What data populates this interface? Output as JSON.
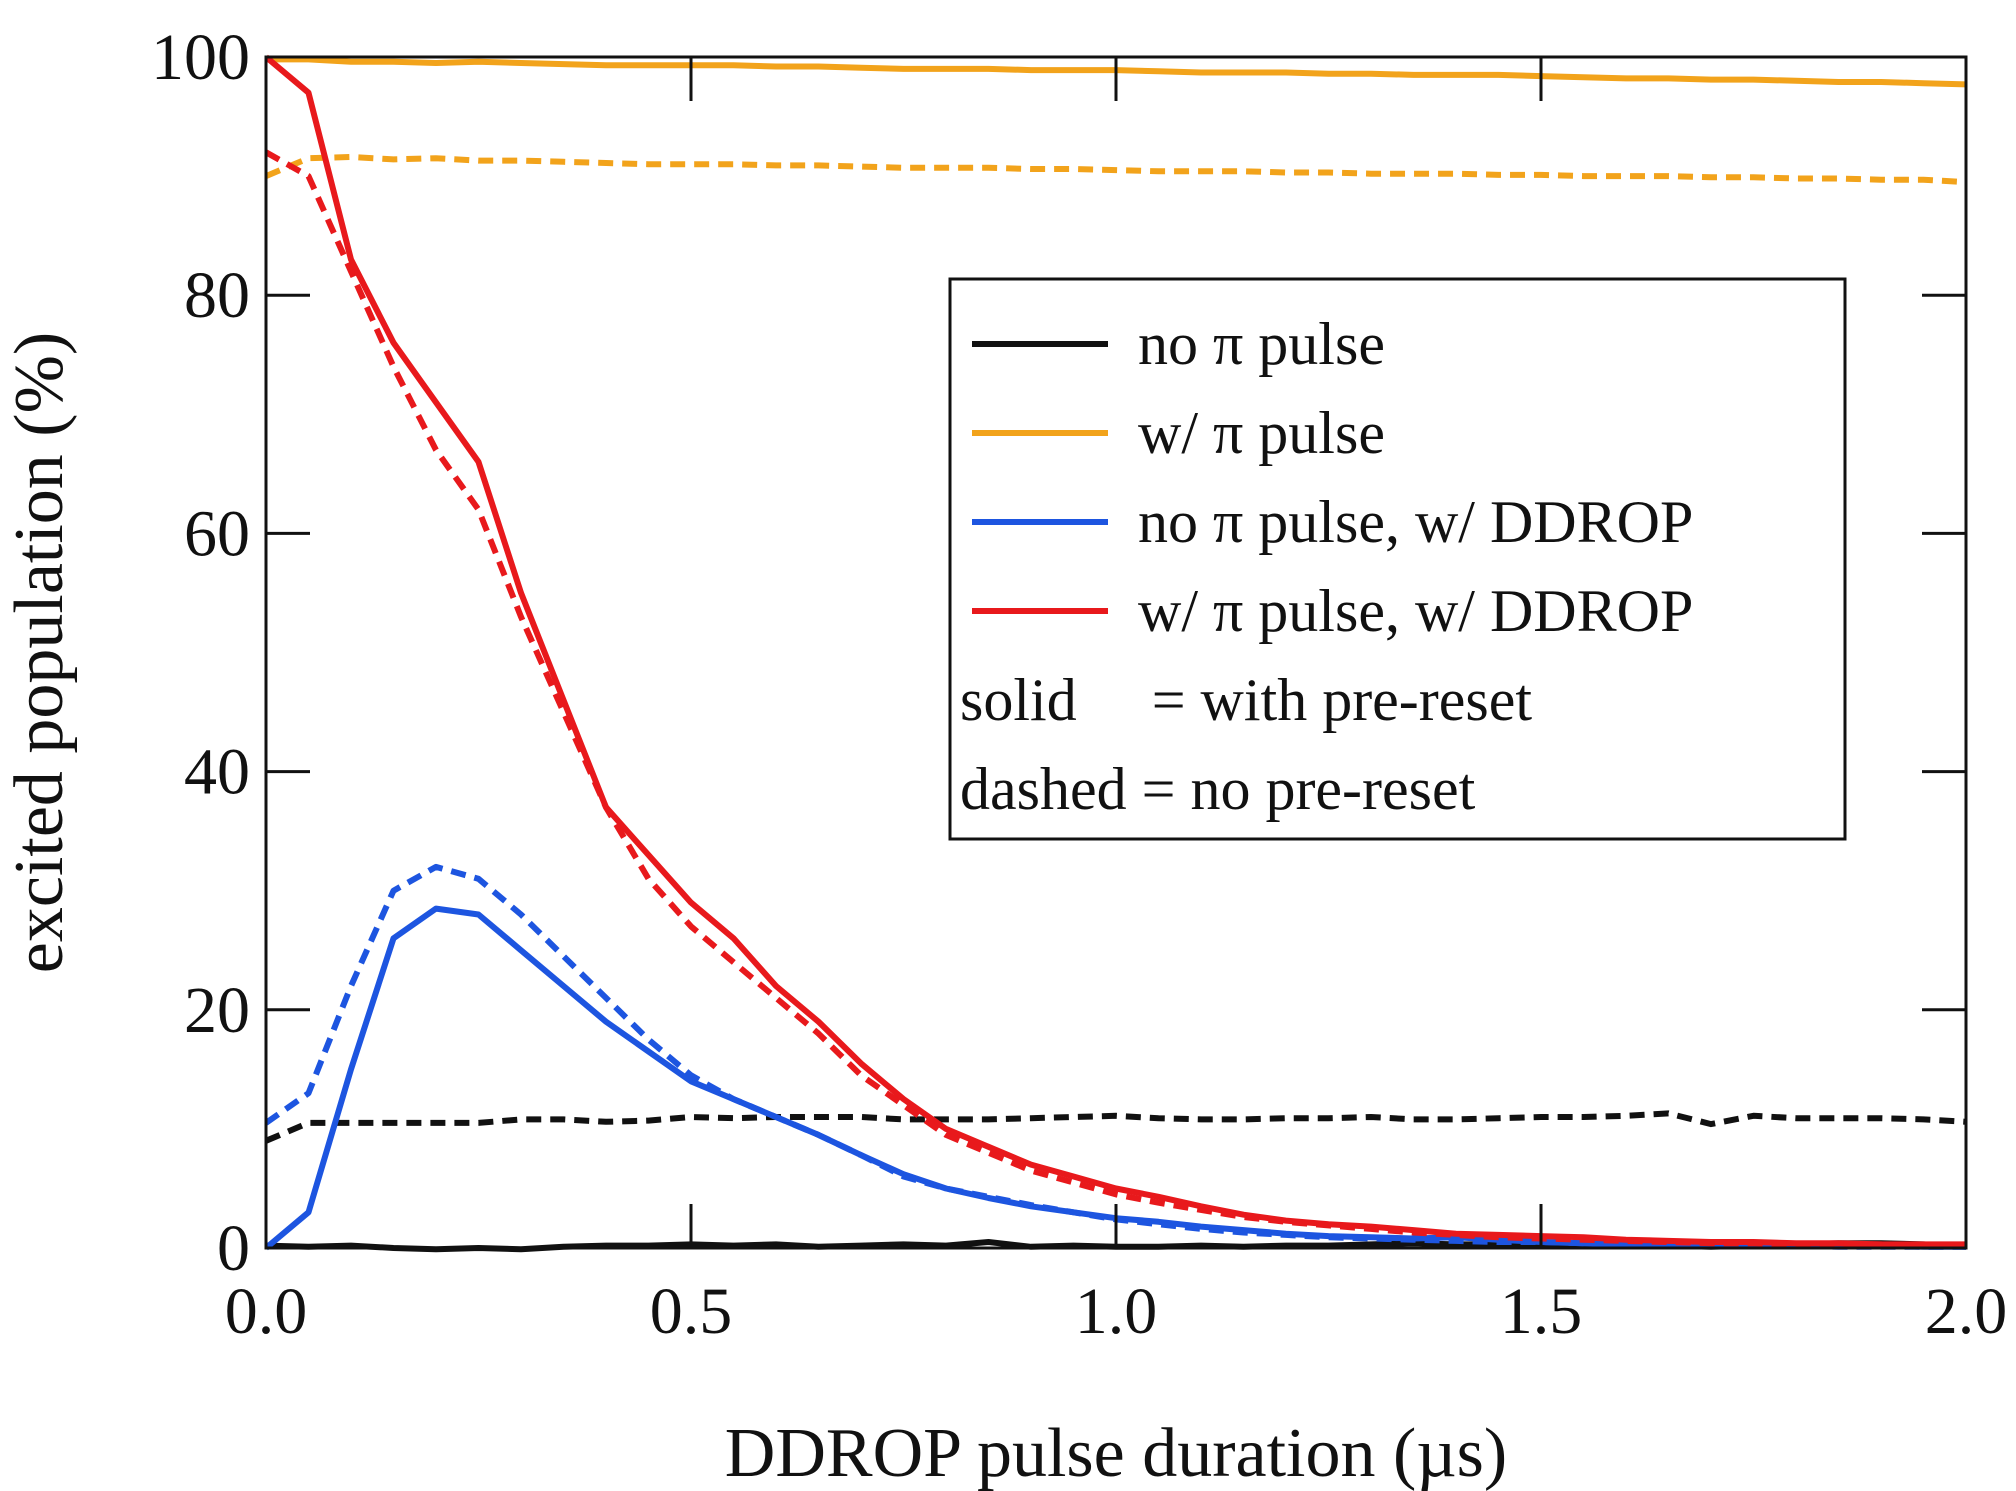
{
  "chart_data": {
    "type": "line",
    "title": "",
    "xlabel": "DDROP pulse duration (µs)",
    "ylabel": "excited population (%)",
    "xlim": [
      0,
      2.0
    ],
    "ylim": [
      0,
      100
    ],
    "x_ticks": [
      "0.0",
      "0.5",
      "1.0",
      "1.5",
      "2.0"
    ],
    "y_ticks": [
      "0",
      "20",
      "40",
      "60",
      "80",
      "100"
    ],
    "grid": false,
    "legend_position": "center-right",
    "legend": {
      "entries": [
        {
          "label": "no π pulse",
          "color": "#111111"
        },
        {
          "label": "w/ π pulse",
          "color": "#f2a31b"
        },
        {
          "label": "no π pulse, w/ DDROP",
          "color": "#1d55e0"
        },
        {
          "label": "w/ π pulse, w/ DDROP",
          "color": "#e8191c"
        }
      ],
      "notes": [
        "solid     = with pre-reset",
        "dashed = no pre-reset"
      ]
    },
    "x": [
      0,
      0.05,
      0.1,
      0.15,
      0.2,
      0.25,
      0.3,
      0.35,
      0.4,
      0.45,
      0.5,
      0.55,
      0.6,
      0.65,
      0.7,
      0.75,
      0.8,
      0.85,
      0.9,
      0.95,
      1.0,
      1.05,
      1.1,
      1.15,
      1.2,
      1.25,
      1.3,
      1.35,
      1.4,
      1.45,
      1.5,
      1.55,
      1.6,
      1.65,
      1.7,
      1.75,
      1.8,
      1.85,
      1.9,
      1.95,
      2.0
    ],
    "series": [
      {
        "color": "#111111",
        "style": "solid",
        "values": [
          0.2,
          0.1,
          0.2,
          0,
          -0.1,
          0,
          -0.1,
          0.1,
          0.2,
          0.2,
          0.3,
          0.2,
          0.3,
          0.1,
          0.2,
          0.3,
          0.2,
          0.5,
          0.1,
          0.2,
          0.1,
          0.1,
          0.2,
          0.1,
          0.2,
          0.2,
          0.3,
          0.4,
          0.3,
          0.3,
          0.2,
          0.2,
          0.3,
          0.2,
          0.1,
          0.2,
          0.3,
          0.4,
          0.4,
          0.3,
          0.1
        ]
      },
      {
        "color": "#111111",
        "style": "dashed",
        "values": [
          9.0,
          10.5,
          10.5,
          10.5,
          10.5,
          10.5,
          10.8,
          10.8,
          10.6,
          10.7,
          11.0,
          10.9,
          11.0,
          11.0,
          11.0,
          10.8,
          10.8,
          10.8,
          10.9,
          11.0,
          11.1,
          10.9,
          10.8,
          10.8,
          10.9,
          10.9,
          11.0,
          10.8,
          10.8,
          10.9,
          11.0,
          11.0,
          11.1,
          11.3,
          10.4,
          11.1,
          10.9,
          10.9,
          10.9,
          10.8,
          10.6
        ]
      },
      {
        "color": "#f2a31b",
        "style": "solid",
        "values": [
          99.8,
          99.8,
          99.6,
          99.6,
          99.5,
          99.6,
          99.5,
          99.4,
          99.3,
          99.3,
          99.3,
          99.3,
          99.2,
          99.2,
          99.1,
          99.0,
          99.0,
          99.0,
          98.9,
          98.9,
          98.9,
          98.8,
          98.7,
          98.7,
          98.7,
          98.6,
          98.6,
          98.5,
          98.5,
          98.5,
          98.4,
          98.3,
          98.2,
          98.2,
          98.1,
          98.1,
          98.0,
          97.9,
          97.9,
          97.8,
          97.7
        ]
      },
      {
        "color": "#f2a31b",
        "style": "dashed",
        "values": [
          90.0,
          91.5,
          91.6,
          91.4,
          91.5,
          91.3,
          91.3,
          91.2,
          91.1,
          91.0,
          91.0,
          91.0,
          90.9,
          90.9,
          90.8,
          90.7,
          90.7,
          90.7,
          90.6,
          90.6,
          90.5,
          90.4,
          90.4,
          90.4,
          90.3,
          90.3,
          90.2,
          90.2,
          90.2,
          90.1,
          90.1,
          90.0,
          90.0,
          90.0,
          89.9,
          89.9,
          89.8,
          89.8,
          89.7,
          89.7,
          89.5
        ]
      },
      {
        "color": "#1d55e0",
        "style": "solid",
        "values": [
          0,
          3.0,
          15.0,
          26.0,
          28.5,
          28.0,
          25.0,
          22.0,
          19.0,
          16.5,
          14.0,
          12.5,
          11.0,
          9.5,
          7.8,
          6.2,
          5.0,
          4.2,
          3.5,
          3.0,
          2.5,
          2.2,
          1.8,
          1.5,
          1.2,
          1.0,
          0.9,
          0.8,
          0.9,
          0.7,
          0.5,
          0.4,
          0.3,
          0.3,
          0.2,
          0.2,
          0.2,
          0.2,
          0.2,
          0.1,
          0.1
        ]
      },
      {
        "color": "#1d55e0",
        "style": "dashed",
        "values": [
          10.5,
          13.0,
          22.0,
          30.0,
          32.0,
          31.0,
          28.0,
          24.5,
          21.0,
          17.5,
          14.5,
          12.5,
          11.0,
          9.5,
          7.8,
          6.0,
          5.0,
          4.3,
          3.6,
          3.0,
          2.4,
          2.0,
          1.6,
          1.3,
          1.1,
          0.9,
          0.8,
          0.7,
          0.6,
          0.5,
          0.5,
          0.4,
          0.3,
          0.3,
          0.2,
          0.2,
          0.2,
          0.1,
          0.1,
          0.1,
          0.1
        ]
      },
      {
        "color": "#e8191c",
        "style": "solid",
        "values": [
          100,
          97.0,
          83.0,
          76.0,
          71.0,
          66.0,
          55.0,
          46.0,
          37.0,
          33.0,
          29.0,
          26.0,
          22.0,
          19.0,
          15.5,
          12.5,
          10.0,
          8.5,
          7.0,
          6.0,
          5.0,
          4.3,
          3.5,
          2.8,
          2.3,
          2.0,
          1.8,
          1.5,
          1.2,
          1.1,
          1.0,
          0.9,
          0.7,
          0.6,
          0.5,
          0.5,
          0.4,
          0.4,
          0.3,
          0.3,
          0.3
        ]
      },
      {
        "color": "#e8191c",
        "style": "dashed",
        "values": [
          92.0,
          90.0,
          82.0,
          74.0,
          67.0,
          62.0,
          53.0,
          45.0,
          37.0,
          31.0,
          27.0,
          24.0,
          21.0,
          18.0,
          14.5,
          12.0,
          9.5,
          8.0,
          6.5,
          5.5,
          4.5,
          3.8,
          3.2,
          2.6,
          2.2,
          1.9,
          1.6,
          1.3,
          1.1,
          0.9,
          0.8,
          0.7,
          0.6,
          0.5,
          0.4,
          0.4,
          0.3,
          0.3,
          0.3,
          0.2,
          0.2
        ]
      }
    ]
  }
}
